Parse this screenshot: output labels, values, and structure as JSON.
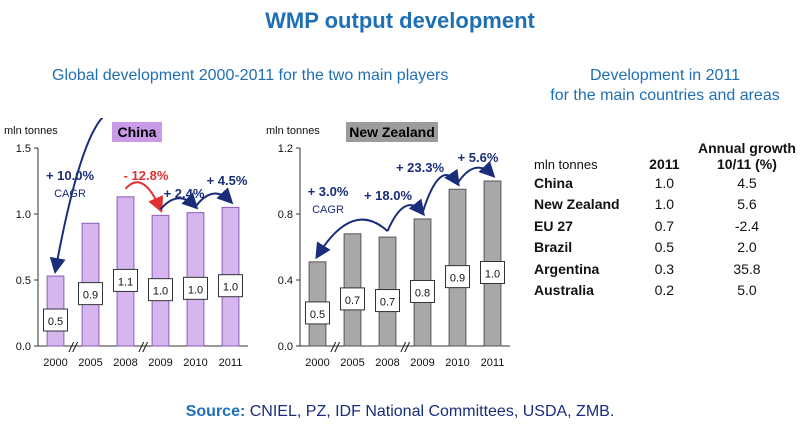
{
  "title": "WMP output development",
  "left_subtitle": "Global development 2000-2011 for the two main players",
  "right_subtitle_line1": "Development in 2011",
  "right_subtitle_line2": "for the main countries and areas",
  "colors": {
    "title": "#1f6fb4",
    "china_bar": "#d5b6ee",
    "china_bar_edge": "#8d5bb8",
    "china_label_bg": "#c89ae8",
    "nz_bar": "#a8a8a8",
    "nz_bar_edge": "#555555",
    "nz_label_bg": "#9c9c9c",
    "annotation": "#1a2d7a",
    "decline": "#e03030"
  },
  "chart_data": [
    {
      "type": "bar",
      "title": "China",
      "ylabel": "mln tonnes",
      "ylim": [
        0,
        1.5
      ],
      "yticks": [
        "0.0",
        "0.5",
        "1.0",
        "1.5"
      ],
      "categories": [
        "2000",
        "2005",
        "2008",
        "2009",
        "2010",
        "2011"
      ],
      "values": [
        0.53,
        0.93,
        1.13,
        0.99,
        1.01,
        1.05
      ],
      "data_labels": [
        "0.5",
        "0.9",
        "1.1",
        "1.0",
        "1.0",
        "1.0"
      ],
      "annotations": [
        "+ 10.0%",
        "CAGR",
        "- 12.8%",
        "+ 2.4%",
        "+ 4.5%"
      ],
      "axis_break": "//"
    },
    {
      "type": "bar",
      "title": "New Zealand",
      "ylabel": "mln tonnes",
      "ylim": [
        0,
        1.2
      ],
      "yticks": [
        "0.0",
        "0.4",
        "0.8",
        "1.2"
      ],
      "categories": [
        "2000",
        "2005",
        "2008",
        "2009",
        "2010",
        "2011"
      ],
      "values": [
        0.51,
        0.68,
        0.66,
        0.77,
        0.95,
        1.0
      ],
      "data_labels": [
        "0.5",
        "0.7",
        "0.7",
        "0.8",
        "0.9",
        "1.0"
      ],
      "annotations": [
        "+ 3.0%",
        "CAGR",
        "+ 18.0%",
        "+ 23.3%",
        "+ 5.6%"
      ],
      "axis_break": "//"
    }
  ],
  "table": {
    "unit": "mln tonnes",
    "col_year": "2011",
    "col_growth_line1": "Annual growth",
    "col_growth_line2": "10/11 (%)",
    "rows": [
      {
        "country": "China",
        "value": "1.0",
        "growth": "4.5"
      },
      {
        "country": "New Zealand",
        "value": "1.0",
        "growth": "5.6"
      },
      {
        "country": "EU 27",
        "value": "0.7",
        "growth": "-2.4"
      },
      {
        "country": "Brazil",
        "value": "0.5",
        "growth": "2.0"
      },
      {
        "country": "Argentina",
        "value": "0.3",
        "growth": "35.8"
      },
      {
        "country": "Australia",
        "value": "0.2",
        "growth": "5.0"
      }
    ]
  },
  "footer": {
    "label": "Source:",
    "text": "CNIEL, PZ, IDF National Committees, USDA, ZMB."
  }
}
